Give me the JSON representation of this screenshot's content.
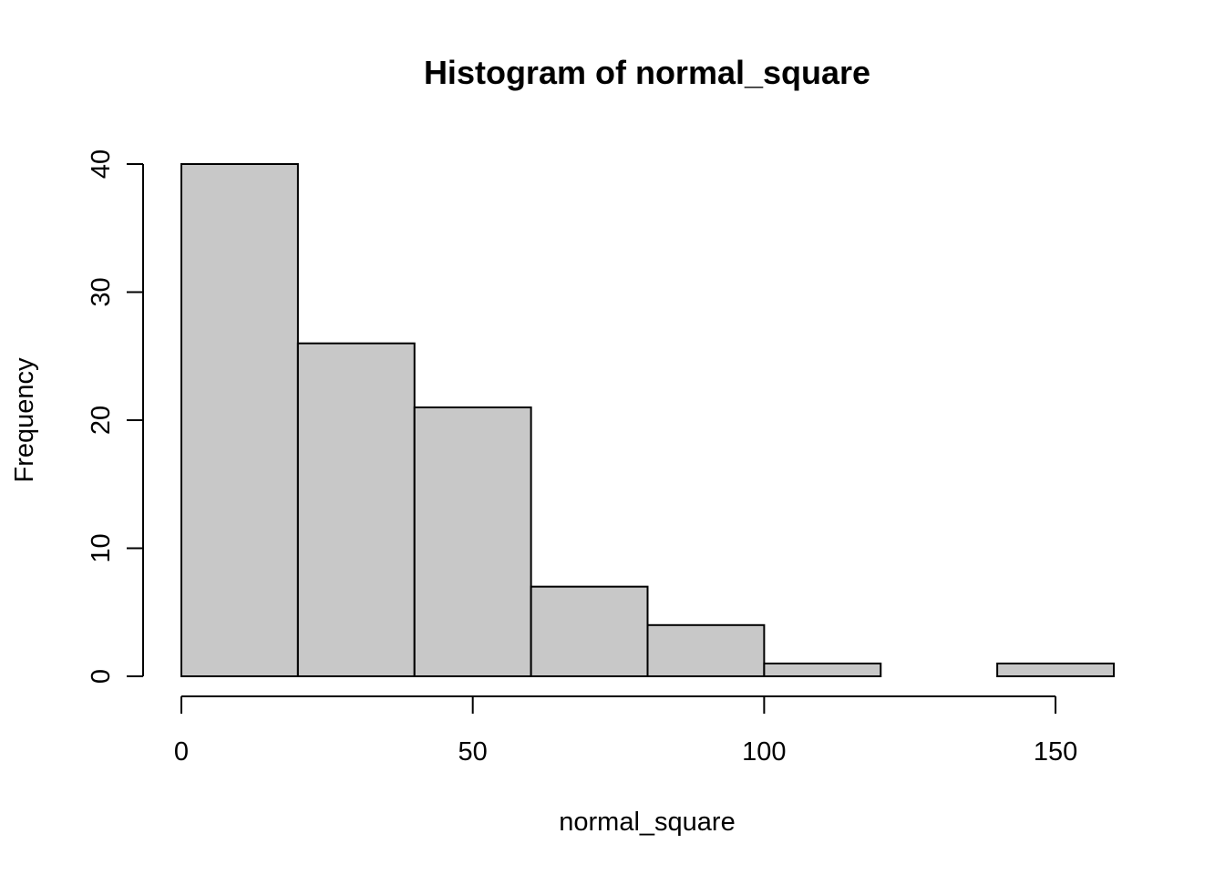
{
  "chart_data": {
    "type": "bar",
    "title": "Histogram of normal_square",
    "xlabel": "normal_square",
    "ylabel": "Frequency",
    "bins": [
      {
        "start": 0,
        "end": 20,
        "count": 40
      },
      {
        "start": 20,
        "end": 40,
        "count": 26
      },
      {
        "start": 40,
        "end": 60,
        "count": 21
      },
      {
        "start": 60,
        "end": 80,
        "count": 7
      },
      {
        "start": 80,
        "end": 100,
        "count": 4
      },
      {
        "start": 100,
        "end": 120,
        "count": 1
      },
      {
        "start": 120,
        "end": 140,
        "count": 0
      },
      {
        "start": 140,
        "end": 160,
        "count": 1
      }
    ],
    "xlim": [
      0,
      160
    ],
    "ylim": [
      0,
      40
    ],
    "x_ticks": [
      "0",
      "50",
      "100",
      "150"
    ],
    "y_ticks": [
      "0",
      "10",
      "20",
      "30",
      "40"
    ],
    "bar_color": "#c8c8c8",
    "grid": false
  }
}
